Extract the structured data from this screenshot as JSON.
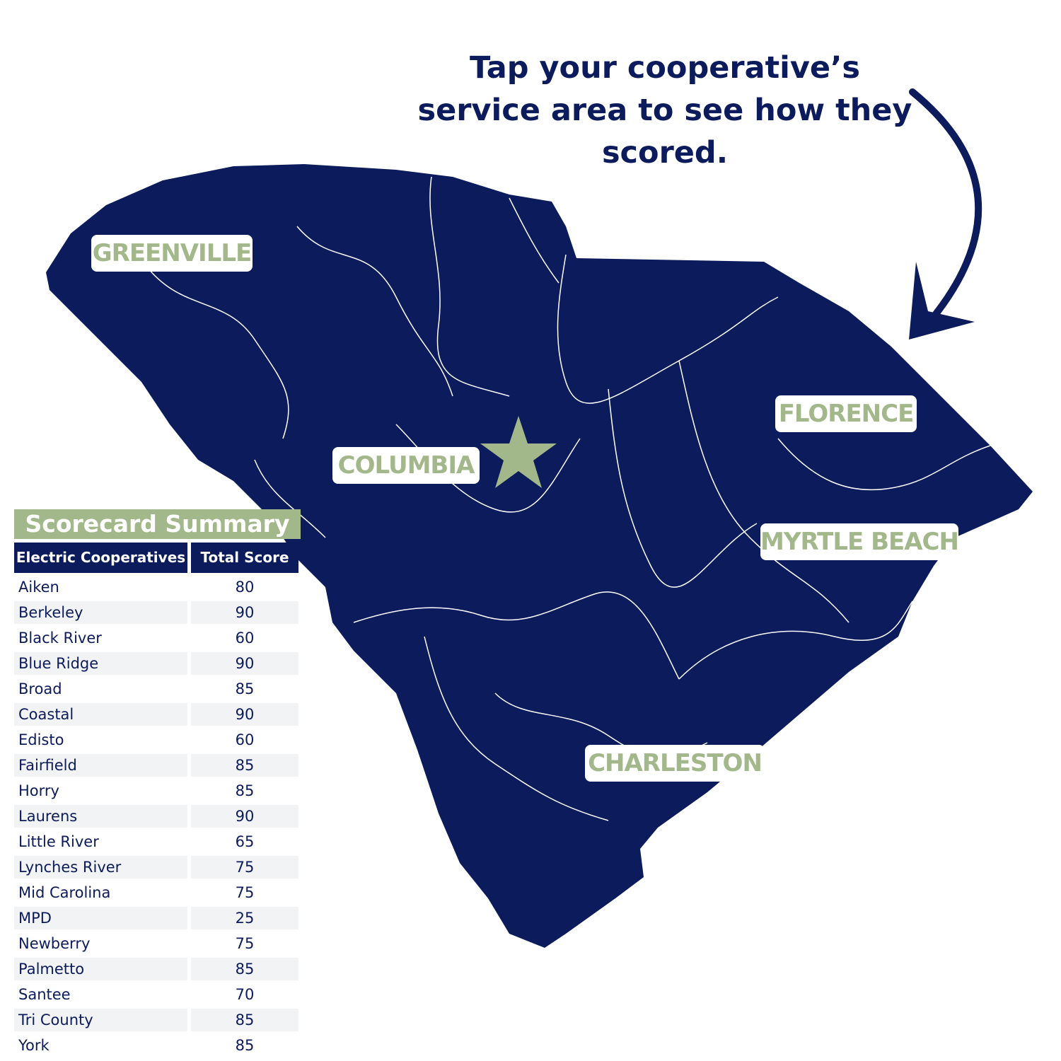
{
  "header": {
    "instruction": "Tap your cooperative’s service area to see how they scored."
  },
  "map": {
    "labels": [
      "GREENVILLE",
      "COLUMBIA",
      "FLORENCE",
      "MYRTLE BEACH",
      "CHARLESTON"
    ]
  },
  "table": {
    "title": "Scorecard Summary",
    "columns": [
      "Electric Cooperatives",
      "Total Score"
    ],
    "rows": [
      [
        "Aiken",
        80
      ],
      [
        "Berkeley",
        90
      ],
      [
        "Black River",
        60
      ],
      [
        "Blue Ridge",
        90
      ],
      [
        "Broad",
        85
      ],
      [
        "Coastal",
        90
      ],
      [
        "Edisto",
        60
      ],
      [
        "Fairfield",
        85
      ],
      [
        "Horry",
        85
      ],
      [
        "Laurens",
        90
      ],
      [
        "Little River",
        65
      ],
      [
        "Lynches River",
        75
      ],
      [
        "Mid Carolina",
        75
      ],
      [
        "MPD",
        25
      ],
      [
        "Newberry",
        75
      ],
      [
        "Palmetto",
        85
      ],
      [
        "Santee",
        70
      ],
      [
        "Tri County",
        85
      ],
      [
        "York",
        85
      ]
    ]
  }
}
